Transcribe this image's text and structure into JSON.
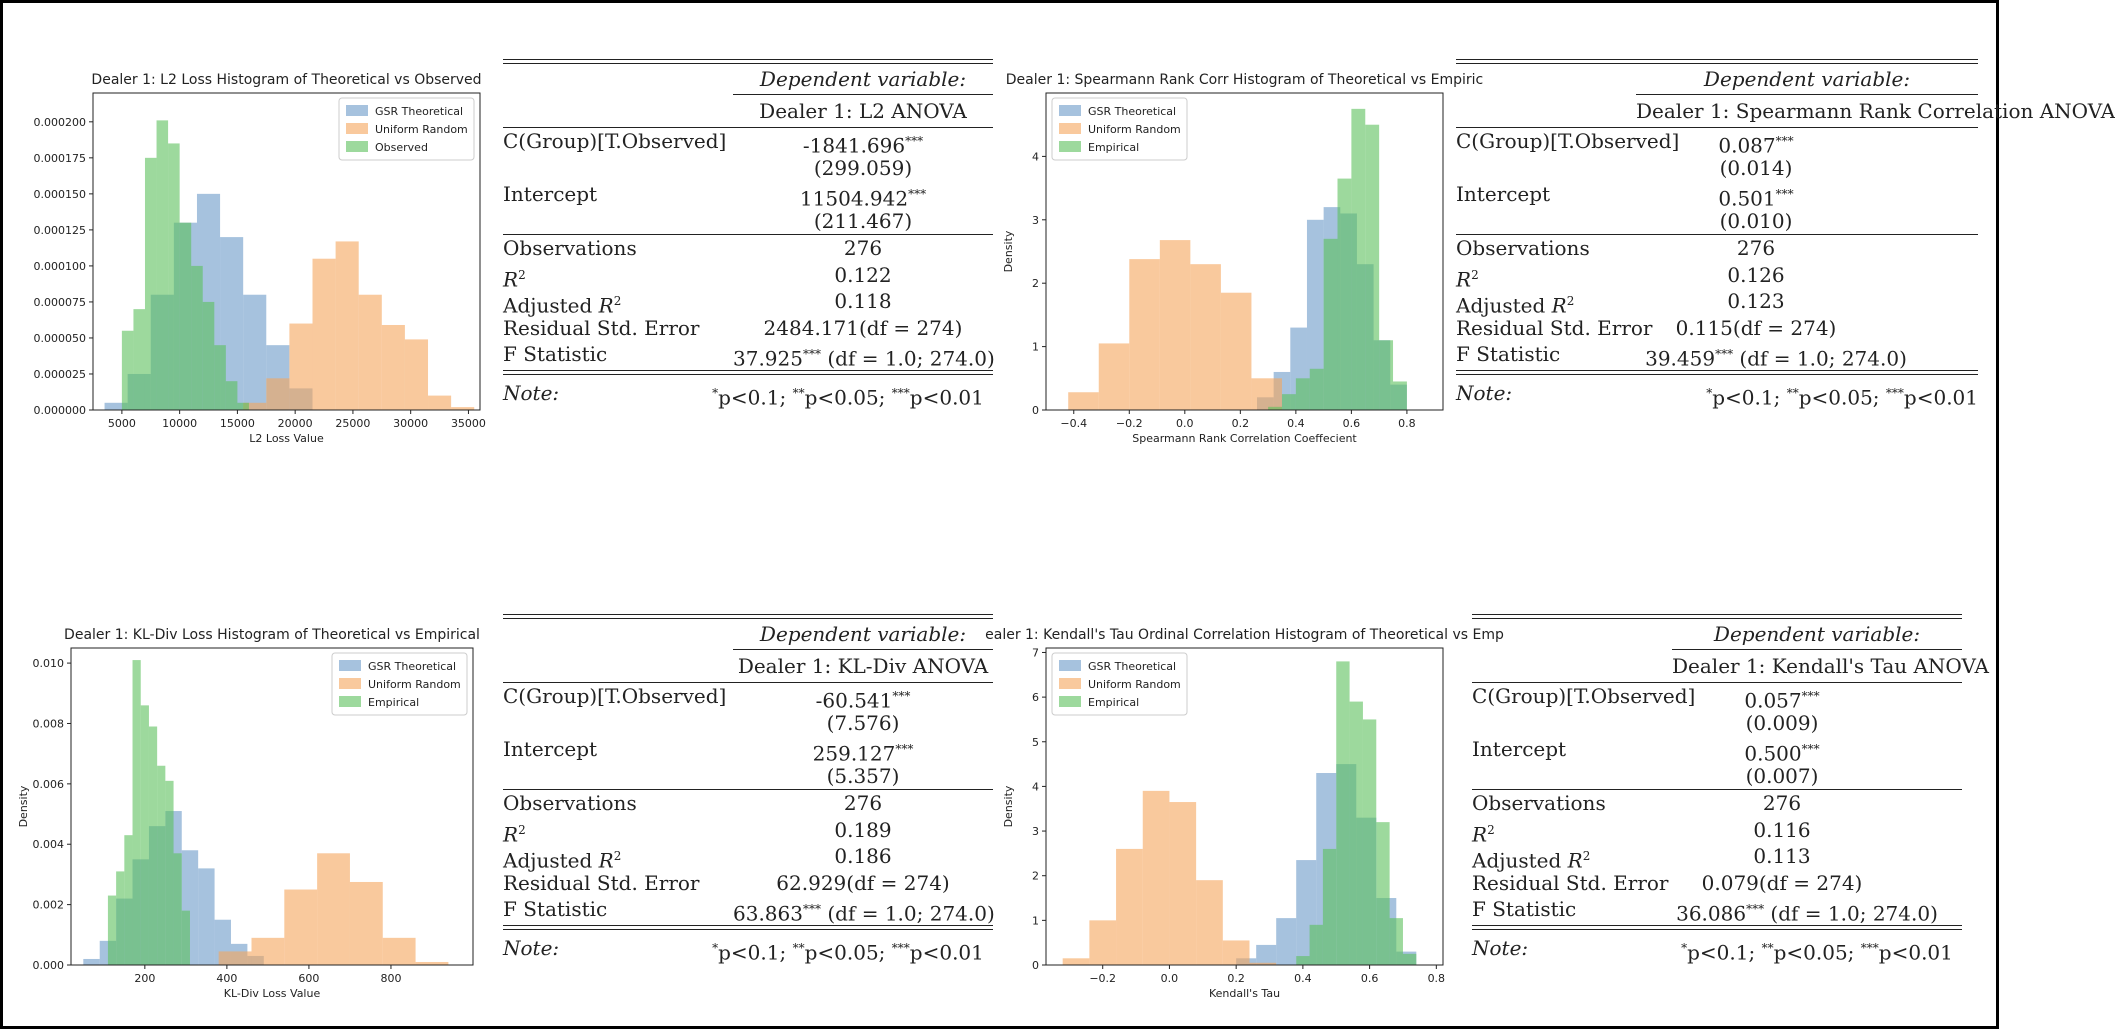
{
  "colors": {
    "gsr": "#6a99c8",
    "uniform": "#f5a55c",
    "empirical": "#5cbf5c",
    "axis": "#222222"
  },
  "charts": [
    {
      "id": "c1",
      "title": "Dealer 1: L2 Loss Histogram of Theoretical vs Observed",
      "xlabel": "L2 Loss Value",
      "ylabel": "",
      "xlim": [
        2500,
        36000
      ],
      "ylim": [
        0,
        0.00022
      ],
      "xticks": [
        5000,
        10000,
        15000,
        20000,
        25000,
        30000,
        35000
      ],
      "xtick_labels": [
        "5000",
        "10000",
        "15000",
        "20000",
        "25000",
        "30000",
        "35000"
      ],
      "yticks": [
        0,
        2.5e-05,
        5e-05,
        7.5e-05,
        0.0001,
        0.000125,
        0.00015,
        0.000175,
        0.0002
      ],
      "ytick_labels": [
        "0.000000",
        "0.000025",
        "0.000050",
        "0.000075",
        "0.000100",
        "0.000125",
        "0.000150",
        "0.000175",
        "0.000200"
      ],
      "legend": [
        "GSR Theoretical",
        "Uniform Random",
        "Observed"
      ]
    },
    {
      "id": "c2",
      "title": "Dealer 1: Spearmann Rank Corr Histogram of Theoretical vs Empiric",
      "xlabel": "Spearmann Rank Correlation Coeffecient",
      "ylabel": "Density",
      "xlim": [
        -0.5,
        0.93
      ],
      "ylim": [
        0,
        5.0
      ],
      "xticks": [
        -0.4,
        -0.2,
        0.0,
        0.2,
        0.4,
        0.6,
        0.8
      ],
      "xtick_labels": [
        "−0.4",
        "−0.2",
        "0.0",
        "0.2",
        "0.4",
        "0.6",
        "0.8"
      ],
      "yticks": [
        0,
        1,
        2,
        3,
        4
      ],
      "ytick_labels": [
        "0",
        "1",
        "2",
        "3",
        "4"
      ],
      "legend": [
        "GSR Theoretical",
        "Uniform Random",
        "Empirical"
      ]
    },
    {
      "id": "c3",
      "title": "Dealer 1: KL-Div Loss Histogram of Theoretical vs Empirical",
      "xlabel": "KL-Div Loss Value",
      "ylabel": "Density",
      "xlim": [
        20,
        1000
      ],
      "ylim": [
        0,
        0.0105
      ],
      "xticks": [
        200,
        400,
        600,
        800
      ],
      "xtick_labels": [
        "200",
        "400",
        "600",
        "800"
      ],
      "yticks": [
        0,
        0.002,
        0.004,
        0.006,
        0.008,
        0.01
      ],
      "ytick_labels": [
        "0.000",
        "0.002",
        "0.004",
        "0.006",
        "0.008",
        "0.010"
      ],
      "legend": [
        "GSR Theoretical",
        "Uniform Random",
        "Empirical"
      ]
    },
    {
      "id": "c4",
      "title": "ealer 1: Kendall's Tau Ordinal Correlation Histogram of Theoretical vs Emp",
      "xlabel": "Kendall's Tau",
      "ylabel": "Density",
      "xlim": [
        -0.37,
        0.82
      ],
      "ylim": [
        0,
        7.1
      ],
      "xticks": [
        -0.2,
        0.0,
        0.2,
        0.4,
        0.6,
        0.8
      ],
      "xtick_labels": [
        "−0.2",
        "0.0",
        "0.2",
        "0.4",
        "0.6",
        "0.8"
      ],
      "yticks": [
        0,
        1,
        2,
        3,
        4,
        5,
        6,
        7
      ],
      "ytick_labels": [
        "0",
        "1",
        "2",
        "3",
        "4",
        "5",
        "6",
        "7"
      ],
      "legend": [
        "GSR Theoretical",
        "Uniform Random",
        "Empirical"
      ]
    }
  ],
  "chart_data": [
    {
      "type": "bar",
      "title": "Dealer 1: L2 Loss Histogram of Theoretical vs Observed",
      "xlabel": "L2 Loss Value",
      "ylabel": "",
      "xlim": [
        2500,
        36000
      ],
      "ylim": [
        0,
        0.00022
      ],
      "legend_position": "top-right",
      "series": [
        {
          "name": "GSR Theoretical",
          "color": "gsr",
          "bins": [
            [
              3500,
              5500,
              5e-06
            ],
            [
              5500,
              7500,
              2.5e-05
            ],
            [
              7500,
              9500,
              8e-05
            ],
            [
              9500,
              11500,
              0.00013
            ],
            [
              11500,
              13500,
              0.00015
            ],
            [
              13500,
              15500,
              0.00012
            ],
            [
              15500,
              17500,
              8e-05
            ],
            [
              17500,
              19500,
              4.5e-05
            ],
            [
              19500,
              21500,
              1.5e-05
            ]
          ]
        },
        {
          "name": "Uniform Random",
          "color": "uniform",
          "bins": [
            [
              15500,
              17500,
              5e-06
            ],
            [
              17500,
              19500,
              2.2e-05
            ],
            [
              19500,
              21500,
              6e-05
            ],
            [
              21500,
              23500,
              0.000105
            ],
            [
              23500,
              25500,
              0.000117
            ],
            [
              25500,
              27500,
              8e-05
            ],
            [
              27500,
              29500,
              5.9e-05
            ],
            [
              29500,
              31500,
              4.9e-05
            ],
            [
              31500,
              33500,
              1e-05
            ],
            [
              33500,
              35500,
              2e-06
            ]
          ]
        },
        {
          "name": "Observed",
          "color": "empirical",
          "bins": [
            [
              5000,
              6000,
              5.5e-05
            ],
            [
              6000,
              7000,
              7e-05
            ],
            [
              7000,
              8000,
              0.000175
            ],
            [
              8000,
              9000,
              0.000201
            ],
            [
              9000,
              10000,
              0.000185
            ],
            [
              10000,
              11000,
              0.00013
            ],
            [
              11000,
              12000,
              0.0001
            ],
            [
              12000,
              13000,
              7.5e-05
            ],
            [
              13000,
              14000,
              4.5e-05
            ],
            [
              14000,
              15000,
              2e-05
            ],
            [
              15000,
              16000,
              5e-06
            ]
          ]
        }
      ]
    },
    {
      "type": "bar",
      "title": "Dealer 1: Spearmann Rank Corr Histogram of Theoretical vs Empiric",
      "xlabel": "Spearmann Rank Correlation Coeffecient",
      "ylabel": "Density",
      "xlim": [
        -0.5,
        0.93
      ],
      "ylim": [
        0,
        5.0
      ],
      "legend_position": "top-left",
      "series": [
        {
          "name": "GSR Theoretical",
          "color": "gsr",
          "bins": [
            [
              0.26,
              0.32,
              0.2
            ],
            [
              0.32,
              0.38,
              0.6
            ],
            [
              0.38,
              0.44,
              1.3
            ],
            [
              0.44,
              0.5,
              3.0
            ],
            [
              0.5,
              0.56,
              3.2
            ],
            [
              0.56,
              0.62,
              3.1
            ],
            [
              0.62,
              0.68,
              2.3
            ],
            [
              0.68,
              0.74,
              1.1
            ],
            [
              0.74,
              0.8,
              0.4
            ]
          ]
        },
        {
          "name": "Uniform Random",
          "color": "uniform",
          "bins": [
            [
              -0.42,
              -0.31,
              0.28
            ],
            [
              -0.31,
              -0.2,
              1.05
            ],
            [
              -0.2,
              -0.09,
              2.38
            ],
            [
              -0.09,
              0.02,
              2.68
            ],
            [
              0.02,
              0.13,
              2.3
            ],
            [
              0.13,
              0.24,
              1.85
            ],
            [
              0.24,
              0.35,
              0.5
            ]
          ]
        },
        {
          "name": "Empirical",
          "color": "empirical",
          "bins": [
            [
              0.3,
              0.35,
              0.05
            ],
            [
              0.35,
              0.4,
              0.25
            ],
            [
              0.4,
              0.45,
              0.5
            ],
            [
              0.45,
              0.5,
              0.65
            ],
            [
              0.5,
              0.55,
              2.7
            ],
            [
              0.55,
              0.6,
              3.65
            ],
            [
              0.6,
              0.65,
              4.75
            ],
            [
              0.65,
              0.7,
              4.5
            ],
            [
              0.7,
              0.75,
              1.1
            ],
            [
              0.75,
              0.8,
              0.45
            ]
          ]
        }
      ]
    },
    {
      "type": "bar",
      "title": "Dealer 1: KL-Div Loss Histogram of Theoretical vs Empirical",
      "xlabel": "KL-Div Loss Value",
      "ylabel": "Density",
      "xlim": [
        20,
        1000
      ],
      "ylim": [
        0,
        0.0105
      ],
      "legend_position": "top-right",
      "series": [
        {
          "name": "GSR Theoretical",
          "color": "gsr",
          "bins": [
            [
              50,
              90,
              0.0002
            ],
            [
              90,
              130,
              0.0008
            ],
            [
              130,
              170,
              0.0022
            ],
            [
              170,
              210,
              0.0035
            ],
            [
              210,
              250,
              0.0046
            ],
            [
              250,
              290,
              0.0051
            ],
            [
              290,
              330,
              0.0038
            ],
            [
              330,
              370,
              0.0032
            ],
            [
              370,
              410,
              0.0015
            ],
            [
              410,
              450,
              0.0007
            ],
            [
              450,
              490,
              0.0003
            ]
          ]
        },
        {
          "name": "Uniform Random",
          "color": "uniform",
          "bins": [
            [
              380,
              460,
              0.00045
            ],
            [
              460,
              540,
              0.0009
            ],
            [
              540,
              620,
              0.0025
            ],
            [
              620,
              700,
              0.0037
            ],
            [
              700,
              780,
              0.00275
            ],
            [
              780,
              860,
              0.0009
            ],
            [
              860,
              940,
              0.0001
            ]
          ]
        },
        {
          "name": "Empirical",
          "color": "empirical",
          "bins": [
            [
              110,
              130,
              0.0023
            ],
            [
              130,
              150,
              0.0031
            ],
            [
              150,
              170,
              0.0043
            ],
            [
              170,
              190,
              0.0101
            ],
            [
              190,
              210,
              0.0086
            ],
            [
              210,
              230,
              0.0079
            ],
            [
              230,
              250,
              0.0066
            ],
            [
              250,
              270,
              0.0061
            ],
            [
              270,
              290,
              0.0037
            ],
            [
              290,
              310,
              0.0018
            ]
          ]
        }
      ]
    },
    {
      "type": "bar",
      "title": "ealer 1: Kendall's Tau Ordinal Correlation Histogram of Theoretical vs Emp",
      "xlabel": "Kendall's Tau",
      "ylabel": "Density",
      "xlim": [
        -0.37,
        0.82
      ],
      "ylim": [
        0,
        7.1
      ],
      "legend_position": "top-left",
      "series": [
        {
          "name": "GSR Theoretical",
          "color": "gsr",
          "bins": [
            [
              0.2,
              0.26,
              0.15
            ],
            [
              0.26,
              0.32,
              0.45
            ],
            [
              0.32,
              0.38,
              1.05
            ],
            [
              0.38,
              0.44,
              2.35
            ],
            [
              0.44,
              0.5,
              4.3
            ],
            [
              0.5,
              0.56,
              4.5
            ],
            [
              0.56,
              0.62,
              3.3
            ],
            [
              0.62,
              0.68,
              1.5
            ],
            [
              0.68,
              0.74,
              0.3
            ]
          ]
        },
        {
          "name": "Uniform Random",
          "color": "uniform",
          "bins": [
            [
              -0.32,
              -0.24,
              0.15
            ],
            [
              -0.24,
              -0.16,
              1.0
            ],
            [
              -0.16,
              -0.08,
              2.6
            ],
            [
              -0.08,
              0.0,
              3.9
            ],
            [
              0.0,
              0.08,
              3.65
            ],
            [
              0.08,
              0.16,
              1.9
            ],
            [
              0.16,
              0.24,
              0.55
            ],
            [
              0.24,
              0.32,
              0.05
            ]
          ]
        },
        {
          "name": "Empirical",
          "color": "empirical",
          "bins": [
            [
              0.38,
              0.42,
              0.2
            ],
            [
              0.42,
              0.46,
              0.9
            ],
            [
              0.46,
              0.5,
              2.6
            ],
            [
              0.5,
              0.54,
              6.8
            ],
            [
              0.54,
              0.58,
              5.9
            ],
            [
              0.58,
              0.62,
              5.5
            ],
            [
              0.62,
              0.66,
              3.2
            ],
            [
              0.66,
              0.7,
              1.05
            ],
            [
              0.7,
              0.74,
              0.25
            ]
          ]
        }
      ]
    }
  ],
  "regressions": [
    {
      "id": "r1",
      "dep_var": "Dependent variable:",
      "model": "Dealer 1: L2 ANOVA",
      "row1_label": "C(Group)[T.Observed]",
      "row1_coef": "-1841.696",
      "row1_stars": "***",
      "row1_se": "(299.059)",
      "row2_label": "Intercept",
      "row2_coef": "11504.942",
      "row2_stars": "***",
      "row2_se": "(211.467)",
      "obs_label": "Observations",
      "obs": "276",
      "r2_label": "R",
      "r2": "0.122",
      "adj_prefix": "Adjusted ",
      "adj_r2": "0.118",
      "rse_label": "Residual Std. Error",
      "rse": "2484.171(df = 274)",
      "f_label": "F Statistic",
      "f_val": "37.925",
      "f_stars": "***",
      "f_df": " (df = 1.0; 274.0)",
      "note_label": "Note:",
      "note": "p<0.1; ",
      "note2": "p<0.05; ",
      "note3": "p<0.01",
      "sup_r2": "2",
      "sup_star1": "*",
      "sup_star2": "**",
      "sup_star3": "***"
    },
    {
      "id": "r2",
      "dep_var": "Dependent variable:",
      "model": "Dealer 1: Spearmann Rank Correlation ANOVA",
      "row1_label": "C(Group)[T.Observed]",
      "row1_coef": "0.087",
      "row1_stars": "***",
      "row1_se": "(0.014)",
      "row2_label": "Intercept",
      "row2_coef": "0.501",
      "row2_stars": "***",
      "row2_se": "(0.010)",
      "obs_label": "Observations",
      "obs": "276",
      "r2_label": "R",
      "r2": "0.126",
      "adj_prefix": "Adjusted ",
      "adj_r2": "0.123",
      "rse_label": "Residual Std. Error",
      "rse": "0.115(df = 274)",
      "f_label": "F Statistic",
      "f_val": "39.459",
      "f_stars": "***",
      "f_df": " (df = 1.0; 274.0)",
      "note_label": "Note:",
      "note": "p<0.1; ",
      "note2": "p<0.05; ",
      "note3": "p<0.01",
      "sup_r2": "2",
      "sup_star1": "*",
      "sup_star2": "**",
      "sup_star3": "***"
    },
    {
      "id": "r3",
      "dep_var": "Dependent variable:",
      "model": "Dealer 1: KL-Div ANOVA",
      "row1_label": "C(Group)[T.Observed]",
      "row1_coef": "-60.541",
      "row1_stars": "***",
      "row1_se": "(7.576)",
      "row2_label": "Intercept",
      "row2_coef": "259.127",
      "row2_stars": "***",
      "row2_se": "(5.357)",
      "obs_label": "Observations",
      "obs": "276",
      "r2_label": "R",
      "r2": "0.189",
      "adj_prefix": "Adjusted ",
      "adj_r2": "0.186",
      "rse_label": "Residual Std. Error",
      "rse": "62.929(df = 274)",
      "f_label": "F Statistic",
      "f_val": "63.863",
      "f_stars": "***",
      "f_df": " (df = 1.0; 274.0)",
      "note_label": "Note:",
      "note": "p<0.1; ",
      "note2": "p<0.05; ",
      "note3": "p<0.01",
      "sup_r2": "2",
      "sup_star1": "*",
      "sup_star2": "**",
      "sup_star3": "***"
    },
    {
      "id": "r4",
      "dep_var": "Dependent variable:",
      "model": "Dealer 1: Kendall's Tau ANOVA",
      "row1_label": "C(Group)[T.Observed]",
      "row1_coef": "0.057",
      "row1_stars": "***",
      "row1_se": "(0.009)",
      "row2_label": "Intercept",
      "row2_coef": "0.500",
      "row2_stars": "***",
      "row2_se": "(0.007)",
      "obs_label": "Observations",
      "obs": "276",
      "r2_label": "R",
      "r2": "0.116",
      "adj_prefix": "Adjusted ",
      "adj_r2": "0.113",
      "rse_label": "Residual Std. Error",
      "rse": "0.079(df = 274)",
      "f_label": "F Statistic",
      "f_val": "36.086",
      "f_stars": "***",
      "f_df": " (df = 1.0; 274.0)",
      "note_label": "Note:",
      "note": "p<0.1; ",
      "note2": "p<0.05; ",
      "note3": "p<0.01",
      "sup_r2": "2",
      "sup_star1": "*",
      "sup_star2": "**",
      "sup_star3": "***"
    }
  ]
}
